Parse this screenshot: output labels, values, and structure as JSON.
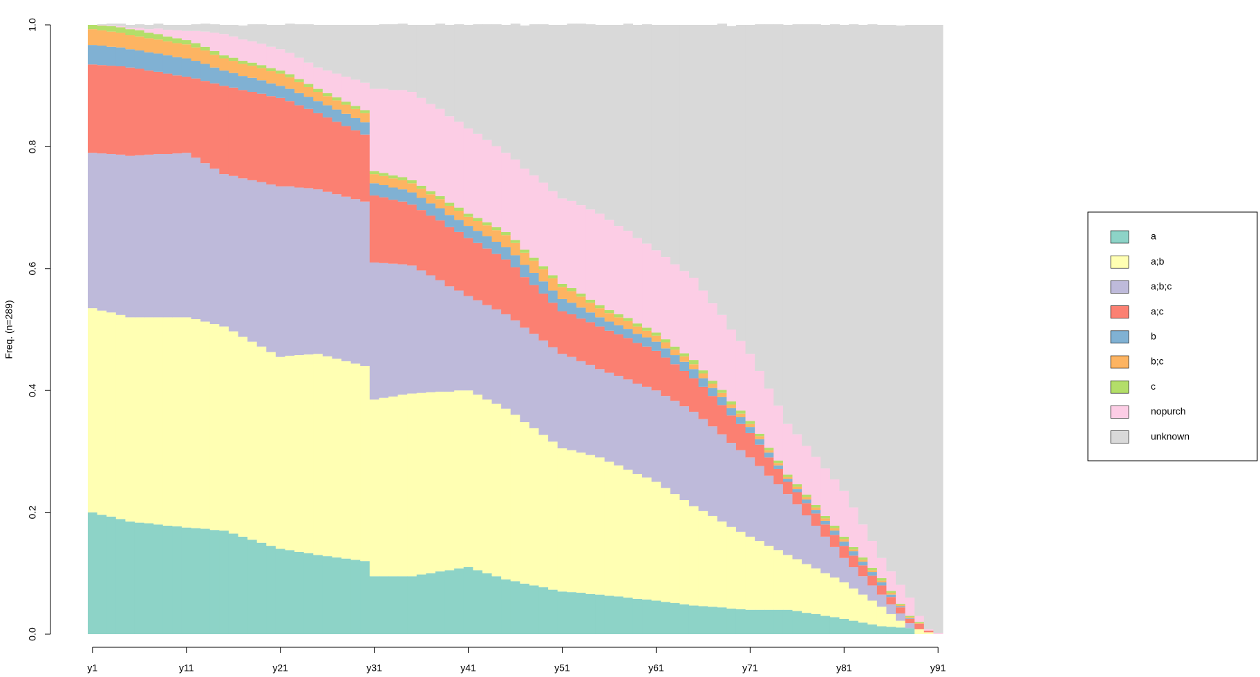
{
  "chart_data": {
    "type": "stacked-bar",
    "y_label": "Freq. (n=289)",
    "categories": [
      "y1",
      null,
      null,
      null,
      null,
      null,
      null,
      null,
      null,
      null,
      "y11",
      null,
      null,
      null,
      null,
      null,
      null,
      null,
      null,
      null,
      "y21",
      null,
      null,
      null,
      null,
      null,
      null,
      null,
      null,
      null,
      "y31",
      null,
      null,
      null,
      null,
      null,
      null,
      null,
      null,
      null,
      "y41",
      null,
      null,
      null,
      null,
      null,
      null,
      null,
      null,
      null,
      "y51",
      null,
      null,
      null,
      null,
      null,
      null,
      null,
      null,
      null,
      "y61",
      null,
      null,
      null,
      null,
      null,
      null,
      null,
      null,
      null,
      "y71",
      null,
      null,
      null,
      null,
      null,
      null,
      null,
      null,
      null,
      "y81",
      null,
      null,
      null,
      null,
      null,
      null,
      null,
      null,
      null,
      "y91"
    ],
    "ylim": [
      0,
      1
    ],
    "yticks": [
      {
        "value": 0,
        "label": "0.0"
      },
      0.2,
      0.4,
      0.6,
      0.8,
      {
        "value": 1,
        "label": "1.0"
      }
    ],
    "legend": "right",
    "series": [
      {
        "name": "a",
        "color": "#8DD3C7",
        "values": [
          0.2,
          0.196,
          0.193,
          0.189,
          0.185,
          0.183,
          0.182,
          0.18,
          0.178,
          0.177,
          0.175,
          0.174,
          0.173,
          0.171,
          0.17,
          0.165,
          0.16,
          0.155,
          0.15,
          0.145,
          0.14,
          0.138,
          0.135,
          0.133,
          0.13,
          0.128,
          0.126,
          0.124,
          0.122,
          0.12,
          0.095,
          0.095,
          0.095,
          0.095,
          0.095,
          0.098,
          0.1,
          0.103,
          0.105,
          0.108,
          0.11,
          0.105,
          0.1,
          0.095,
          0.09,
          0.087,
          0.083,
          0.08,
          0.077,
          0.073,
          0.07,
          0.069,
          0.068,
          0.066,
          0.065,
          0.063,
          0.062,
          0.06,
          0.058,
          0.057,
          0.055,
          0.053,
          0.051,
          0.049,
          0.047,
          0.046,
          0.045,
          0.044,
          0.042,
          0.041,
          0.04,
          0.04,
          0.04,
          0.04,
          0.04,
          0.038,
          0.035,
          0.033,
          0.03,
          0.028,
          0.025,
          0.022,
          0.019,
          0.016,
          0.013,
          0.012,
          0.011,
          0.01,
          0,
          0,
          0
        ]
      },
      {
        "name": "a;b",
        "color": "#FFFFB3",
        "values": [
          0.335,
          0.335,
          0.335,
          0.335,
          0.335,
          0.337,
          0.338,
          0.34,
          0.342,
          0.343,
          0.345,
          0.343,
          0.34,
          0.338,
          0.335,
          0.332,
          0.328,
          0.325,
          0.322,
          0.318,
          0.315,
          0.319,
          0.323,
          0.326,
          0.33,
          0.328,
          0.326,
          0.324,
          0.322,
          0.32,
          0.29,
          0.293,
          0.295,
          0.298,
          0.3,
          0.298,
          0.297,
          0.295,
          0.293,
          0.292,
          0.29,
          0.288,
          0.285,
          0.283,
          0.28,
          0.273,
          0.265,
          0.258,
          0.25,
          0.243,
          0.235,
          0.233,
          0.23,
          0.228,
          0.225,
          0.22,
          0.215,
          0.21,
          0.205,
          0.2,
          0.195,
          0.187,
          0.179,
          0.171,
          0.163,
          0.156,
          0.149,
          0.141,
          0.134,
          0.127,
          0.12,
          0.113,
          0.105,
          0.098,
          0.09,
          0.085,
          0.08,
          0.075,
          0.07,
          0.065,
          0.06,
          0.053,
          0.046,
          0.039,
          0.032,
          0.021,
          0.011,
          0,
          0.008,
          0.003,
          0
        ]
      },
      {
        "name": "a;b;c",
        "color": "#BEBADA",
        "values": [
          0.255,
          0.258,
          0.26,
          0.263,
          0.265,
          0.266,
          0.267,
          0.268,
          0.268,
          0.269,
          0.27,
          0.265,
          0.26,
          0.255,
          0.25,
          0.255,
          0.26,
          0.265,
          0.27,
          0.275,
          0.28,
          0.278,
          0.275,
          0.273,
          0.27,
          0.27,
          0.27,
          0.27,
          0.27,
          0.27,
          0.225,
          0.221,
          0.218,
          0.214,
          0.21,
          0.201,
          0.192,
          0.183,
          0.173,
          0.164,
          0.155,
          0.155,
          0.155,
          0.155,
          0.155,
          0.155,
          0.155,
          0.155,
          0.155,
          0.155,
          0.155,
          0.153,
          0.15,
          0.148,
          0.145,
          0.146,
          0.147,
          0.148,
          0.148,
          0.149,
          0.15,
          0.151,
          0.153,
          0.154,
          0.155,
          0.151,
          0.147,
          0.143,
          0.138,
          0.134,
          0.13,
          0.123,
          0.115,
          0.108,
          0.1,
          0.09,
          0.08,
          0.07,
          0.06,
          0.05,
          0.04,
          0.035,
          0.03,
          0.025,
          0.02,
          0.016,
          0.012,
          0.008,
          0,
          0,
          0
        ]
      },
      {
        "name": "a;c",
        "color": "#FB8072",
        "values": [
          0.145,
          0.145,
          0.145,
          0.145,
          0.145,
          0.142,
          0.138,
          0.135,
          0.132,
          0.128,
          0.125,
          0.13,
          0.135,
          0.14,
          0.145,
          0.145,
          0.145,
          0.145,
          0.145,
          0.145,
          0.145,
          0.14,
          0.135,
          0.13,
          0.125,
          0.122,
          0.119,
          0.116,
          0.113,
          0.11,
          0.11,
          0.108,
          0.105,
          0.103,
          0.1,
          0.099,
          0.098,
          0.098,
          0.097,
          0.096,
          0.095,
          0.094,
          0.093,
          0.091,
          0.09,
          0.087,
          0.083,
          0.08,
          0.077,
          0.073,
          0.07,
          0.07,
          0.07,
          0.07,
          0.07,
          0.069,
          0.068,
          0.068,
          0.067,
          0.066,
          0.065,
          0.063,
          0.06,
          0.058,
          0.055,
          0.053,
          0.05,
          0.048,
          0.045,
          0.043,
          0.04,
          0.035,
          0.03,
          0.025,
          0.02,
          0.02,
          0.02,
          0.02,
          0.02,
          0.02,
          0.02,
          0.019,
          0.018,
          0.016,
          0.015,
          0.012,
          0.01,
          0.007,
          0.009,
          0.003,
          0
        ]
      },
      {
        "name": "b",
        "color": "#80B1D3",
        "values": [
          0.032,
          0.032,
          0.031,
          0.031,
          0.03,
          0.03,
          0.03,
          0.03,
          0.03,
          0.03,
          0.03,
          0.029,
          0.028,
          0.026,
          0.025,
          0.024,
          0.023,
          0.023,
          0.022,
          0.021,
          0.02,
          0.02,
          0.02,
          0.02,
          0.02,
          0.02,
          0.02,
          0.02,
          0.02,
          0.02,
          0.02,
          0.02,
          0.02,
          0.02,
          0.02,
          0.02,
          0.02,
          0.02,
          0.02,
          0.02,
          0.02,
          0.02,
          0.02,
          0.02,
          0.02,
          0.02,
          0.02,
          0.02,
          0.02,
          0.02,
          0.02,
          0.019,
          0.018,
          0.016,
          0.015,
          0.015,
          0.015,
          0.015,
          0.015,
          0.015,
          0.015,
          0.015,
          0.015,
          0.015,
          0.015,
          0.014,
          0.013,
          0.013,
          0.012,
          0.011,
          0.01,
          0.009,
          0.008,
          0.006,
          0.005,
          0.005,
          0.006,
          0.006,
          0.006,
          0.007,
          0.007,
          0.007,
          0.006,
          0.006,
          0.005,
          0.004,
          0.002,
          0.001,
          0,
          0,
          0
        ]
      },
      {
        "name": "b;c",
        "color": "#FDB462",
        "values": [
          0.026,
          0.025,
          0.025,
          0.024,
          0.023,
          0.023,
          0.023,
          0.023,
          0.023,
          0.023,
          0.023,
          0.022,
          0.022,
          0.021,
          0.02,
          0.02,
          0.02,
          0.02,
          0.02,
          0.02,
          0.02,
          0.019,
          0.018,
          0.016,
          0.015,
          0.015,
          0.015,
          0.015,
          0.015,
          0.015,
          0.015,
          0.015,
          0.015,
          0.015,
          0.015,
          0.015,
          0.015,
          0.015,
          0.015,
          0.015,
          0.015,
          0.016,
          0.018,
          0.019,
          0.02,
          0.02,
          0.02,
          0.02,
          0.02,
          0.02,
          0.02,
          0.019,
          0.018,
          0.016,
          0.015,
          0.014,
          0.013,
          0.013,
          0.012,
          0.011,
          0.01,
          0.01,
          0.009,
          0.009,
          0.008,
          0.008,
          0.007,
          0.007,
          0.006,
          0.006,
          0.005,
          0.005,
          0.004,
          0.004,
          0.003,
          0.004,
          0.004,
          0.004,
          0.004,
          0.004,
          0.004,
          0.003,
          0.003,
          0.003,
          0.003,
          0.003,
          0.002,
          0.002,
          0.001,
          0,
          0
        ]
      },
      {
        "name": "c",
        "color": "#B3DE69",
        "values": [
          0.007,
          0.008,
          0.009,
          0.009,
          0.01,
          0.01,
          0.009,
          0.009,
          0.008,
          0.008,
          0.007,
          0.007,
          0.006,
          0.006,
          0.005,
          0.005,
          0.005,
          0.005,
          0.005,
          0.005,
          0.005,
          0.005,
          0.005,
          0.005,
          0.005,
          0.005,
          0.005,
          0.005,
          0.005,
          0.005,
          0.005,
          0.005,
          0.005,
          0.005,
          0.005,
          0.005,
          0.005,
          0.005,
          0.005,
          0.005,
          0.005,
          0.005,
          0.005,
          0.005,
          0.005,
          0.005,
          0.005,
          0.005,
          0.005,
          0.005,
          0.005,
          0.005,
          0.005,
          0.005,
          0.005,
          0.005,
          0.005,
          0.005,
          0.005,
          0.005,
          0.005,
          0.005,
          0.005,
          0.005,
          0.007,
          0.005,
          0.005,
          0.005,
          0.005,
          0.005,
          0.005,
          0.004,
          0.004,
          0.004,
          0.004,
          0.004,
          0.004,
          0.004,
          0.004,
          0.004,
          0.004,
          0.004,
          0.004,
          0.004,
          0.004,
          0.003,
          0.002,
          0.002,
          0.002,
          0,
          0
        ]
      },
      {
        "name": "nopurch",
        "color": "#FCCDE5",
        "values": [
          0,
          0.001,
          0.001,
          0.002,
          0.002,
          0.004,
          0.006,
          0.009,
          0.011,
          0.013,
          0.015,
          0.02,
          0.025,
          0.03,
          0.035,
          0.035,
          0.035,
          0.035,
          0.035,
          0.035,
          0.035,
          0.035,
          0.035,
          0.035,
          0.035,
          0.037,
          0.039,
          0.041,
          0.043,
          0.045,
          0.135,
          0.138,
          0.14,
          0.143,
          0.145,
          0.144,
          0.143,
          0.143,
          0.142,
          0.141,
          0.14,
          0.138,
          0.135,
          0.133,
          0.13,
          0.132,
          0.133,
          0.135,
          0.137,
          0.138,
          0.14,
          0.143,
          0.145,
          0.148,
          0.15,
          0.148,
          0.145,
          0.143,
          0.14,
          0.138,
          0.135,
          0.135,
          0.135,
          0.135,
          0.135,
          0.131,
          0.127,
          0.123,
          0.118,
          0.114,
          0.11,
          0.103,
          0.097,
          0.09,
          0.083,
          0.082,
          0.08,
          0.079,
          0.078,
          0.076,
          0.075,
          0.065,
          0.054,
          0.044,
          0.033,
          0.032,
          0.031,
          0.03,
          0.01,
          0.002,
          0.002
        ]
      },
      {
        "name": "unknown",
        "color": "#D9D9D9",
        "values": [
          0,
          0.001,
          0.003,
          0.004,
          0.005,
          0.006,
          0.007,
          0.008,
          0.008,
          0.009,
          0.01,
          0.011,
          0.013,
          0.014,
          0.015,
          0.019,
          0.023,
          0.028,
          0.032,
          0.036,
          0.04,
          0.048,
          0.055,
          0.063,
          0.07,
          0.075,
          0.08,
          0.085,
          0.09,
          0.095,
          0.105,
          0.106,
          0.108,
          0.109,
          0.11,
          0.12,
          0.13,
          0.14,
          0.15,
          0.16,
          0.17,
          0.18,
          0.19,
          0.2,
          0.21,
          0.223,
          0.235,
          0.248,
          0.26,
          0.273,
          0.285,
          0.291,
          0.298,
          0.304,
          0.31,
          0.32,
          0.33,
          0.34,
          0.35,
          0.36,
          0.37,
          0.381,
          0.393,
          0.404,
          0.415,
          0.436,
          0.457,
          0.478,
          0.498,
          0.519,
          0.54,
          0.569,
          0.598,
          0.626,
          0.655,
          0.673,
          0.692,
          0.71,
          0.728,
          0.747,
          0.765,
          0.793,
          0.82,
          0.848,
          0.875,
          0.897,
          0.918,
          0.94,
          0.97,
          0.992,
          0.998
        ]
      }
    ]
  }
}
